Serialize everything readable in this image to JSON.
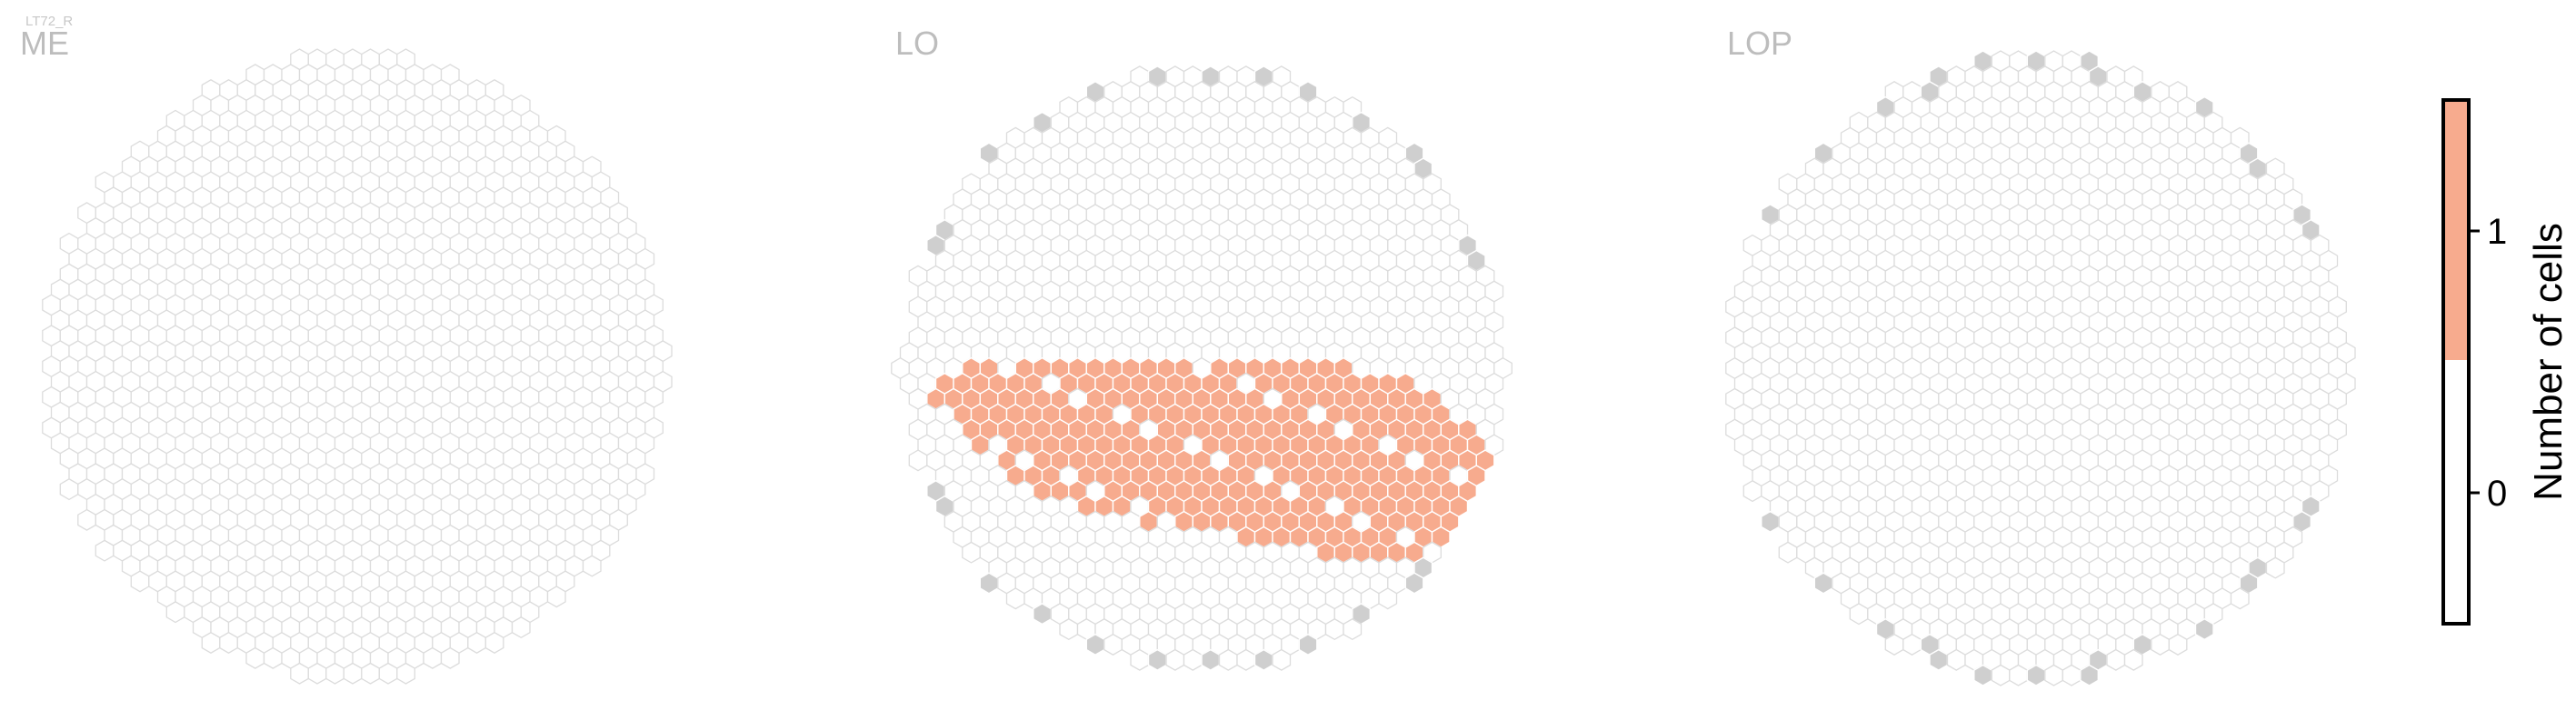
{
  "cell_type_label": "LT72_R",
  "colors": {
    "empty_fill": "#ffffff",
    "empty_stroke": "#dcdcdc",
    "outside_column": "#cfcfcf",
    "one_cell": "#f7ab8e",
    "colorbar_frame": "#000000"
  },
  "chart_data": {
    "type": "heatmap",
    "grid": "hexagonal column map",
    "panels": [
      {
        "label": "ME",
        "count_1_rows": []
      },
      {
        "label": "LO",
        "count_1_rows": [
          {
            "row": 1,
            "from": 0.1,
            "to": 0.75
          },
          {
            "row": 2,
            "from": 0.06,
            "to": 0.85
          },
          {
            "row": 3,
            "from": 0.06,
            "to": 0.9
          },
          {
            "row": 4,
            "from": 0.08,
            "to": 0.92
          },
          {
            "row": 5,
            "from": 0.1,
            "to": 0.95
          },
          {
            "row": 6,
            "from": 0.12,
            "to": 0.98
          },
          {
            "row": 7,
            "from": 0.15,
            "to": 1.0
          },
          {
            "row": 8,
            "from": 0.18,
            "to": 0.98
          },
          {
            "row": 9,
            "from": 0.22,
            "to": 0.96
          },
          {
            "row": 10,
            "from": 0.3,
            "to": 0.96
          },
          {
            "row": 11,
            "from": 0.4,
            "to": 0.95
          },
          {
            "row": 12,
            "from": 0.55,
            "to": 0.92
          },
          {
            "row": 13,
            "from": 0.7,
            "to": 0.9
          }
        ]
      },
      {
        "label": "LOP",
        "count_1_rows": []
      }
    ],
    "colorbar": {
      "title": "Number of cells",
      "ticks": [
        "0",
        "1"
      ],
      "range": [
        -0.5,
        1.5
      ],
      "segments": [
        {
          "from": -0.5,
          "to": 0.5,
          "color": "#ffffff"
        },
        {
          "from": 0.5,
          "to": 1.5,
          "color": "#f7ab8e"
        }
      ]
    }
  }
}
